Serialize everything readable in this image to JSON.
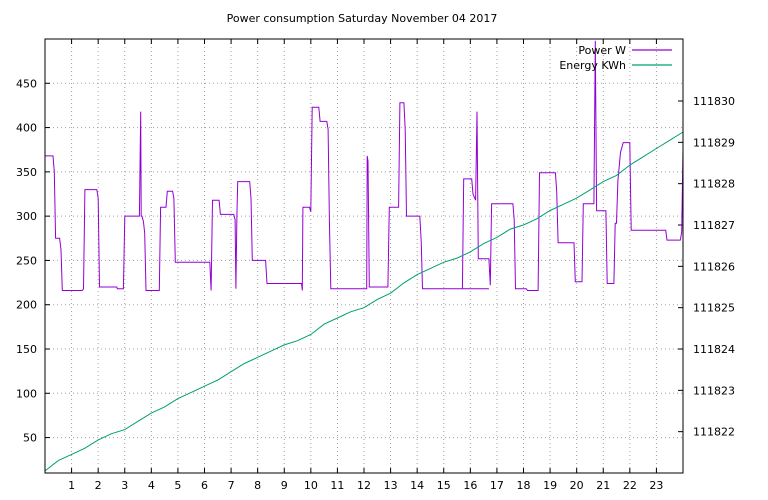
{
  "chart_data": {
    "type": "line",
    "title": "Power consumption Saturday November 04 2017",
    "xlim": [
      0,
      24
    ],
    "ylim": [
      10,
      500
    ],
    "y2lim": [
      111821,
      111831.5
    ],
    "xticks": [
      1,
      2,
      3,
      4,
      5,
      6,
      7,
      8,
      9,
      10,
      11,
      12,
      13,
      14,
      15,
      16,
      17,
      18,
      19,
      20,
      21,
      22,
      23
    ],
    "yticks": [
      50,
      100,
      150,
      200,
      250,
      300,
      350,
      400,
      450
    ],
    "y2ticks": [
      111822,
      111823,
      111824,
      111825,
      111826,
      111827,
      111828,
      111829,
      111830
    ],
    "grid": true,
    "legend_position": "top-right",
    "series": [
      {
        "name": "Power W",
        "axis": "y1",
        "color": "#9400d3",
        "points": [
          [
            0.0,
            368
          ],
          [
            0.3,
            368
          ],
          [
            0.35,
            350
          ],
          [
            0.4,
            275
          ],
          [
            0.55,
            275
          ],
          [
            0.6,
            262
          ],
          [
            0.65,
            216
          ],
          [
            1.4,
            216
          ],
          [
            1.45,
            218
          ],
          [
            1.5,
            330
          ],
          [
            1.95,
            330
          ],
          [
            2.0,
            320
          ],
          [
            2.05,
            220
          ],
          [
            2.7,
            220
          ],
          [
            2.72,
            218
          ],
          [
            2.95,
            218
          ],
          [
            3.0,
            300
          ],
          [
            3.55,
            300
          ],
          [
            3.6,
            418
          ],
          [
            3.62,
            300
          ],
          [
            3.65,
            300
          ],
          [
            3.7,
            294
          ],
          [
            3.75,
            281
          ],
          [
            3.8,
            216
          ],
          [
            4.3,
            216
          ],
          [
            4.35,
            310
          ],
          [
            4.55,
            310
          ],
          [
            4.6,
            328
          ],
          [
            4.8,
            328
          ],
          [
            4.85,
            320
          ],
          [
            4.9,
            248
          ],
          [
            6.2,
            248
          ],
          [
            6.25,
            216
          ],
          [
            6.3,
            318
          ],
          [
            6.55,
            318
          ],
          [
            6.6,
            302
          ],
          [
            7.1,
            302
          ],
          [
            7.15,
            296
          ],
          [
            7.18,
            218
          ],
          [
            7.22,
            300
          ],
          [
            7.25,
            339
          ],
          [
            7.7,
            339
          ],
          [
            7.75,
            320
          ],
          [
            7.8,
            250
          ],
          [
            8.3,
            250
          ],
          [
            8.35,
            224
          ],
          [
            9.65,
            224
          ],
          [
            9.68,
            216
          ],
          [
            9.7,
            310
          ],
          [
            9.95,
            310
          ],
          [
            10.0,
            305
          ],
          [
            10.05,
            423
          ],
          [
            10.3,
            423
          ],
          [
            10.35,
            407
          ],
          [
            10.6,
            407
          ],
          [
            10.65,
            398
          ],
          [
            10.7,
            295
          ],
          [
            10.75,
            218
          ],
          [
            12.1,
            218
          ],
          [
            12.12,
            368
          ],
          [
            12.15,
            362
          ],
          [
            12.2,
            220
          ],
          [
            12.9,
            220
          ],
          [
            12.95,
            310
          ],
          [
            13.3,
            310
          ],
          [
            13.35,
            428
          ],
          [
            13.5,
            428
          ],
          [
            13.55,
            398
          ],
          [
            13.6,
            300
          ],
          [
            14.1,
            300
          ],
          [
            14.15,
            272
          ],
          [
            14.2,
            218
          ],
          [
            16.7,
            218
          ],
          [
            15.7,
            218
          ],
          [
            15.75,
            342
          ],
          [
            16.05,
            342
          ],
          [
            16.1,
            325
          ],
          [
            16.2,
            318
          ],
          [
            16.25,
            418
          ],
          [
            16.3,
            252
          ],
          [
            16.7,
            252
          ],
          [
            16.75,
            222
          ],
          [
            16.8,
            314
          ],
          [
            17.6,
            314
          ],
          [
            17.65,
            296
          ],
          [
            17.7,
            218
          ],
          [
            18.1,
            218
          ],
          [
            18.15,
            216
          ],
          [
            18.55,
            216
          ],
          [
            18.6,
            349
          ],
          [
            19.2,
            349
          ],
          [
            19.25,
            328
          ],
          [
            19.3,
            270
          ],
          [
            19.9,
            270
          ],
          [
            19.95,
            226
          ],
          [
            20.2,
            226
          ],
          [
            20.25,
            314
          ],
          [
            20.65,
            314
          ],
          [
            20.7,
            498
          ],
          [
            20.75,
            306
          ],
          [
            21.1,
            306
          ],
          [
            21.15,
            224
          ],
          [
            21.4,
            224
          ],
          [
            21.45,
            292
          ],
          [
            21.5,
            292
          ],
          [
            21.55,
            340
          ],
          [
            21.65,
            372
          ],
          [
            21.75,
            383
          ],
          [
            22.0,
            383
          ],
          [
            22.05,
            284
          ],
          [
            23.35,
            284
          ],
          [
            23.4,
            273
          ],
          [
            23.9,
            273
          ],
          [
            23.95,
            282
          ],
          [
            24.0,
            376
          ]
        ]
      },
      {
        "name": "Energy KWh",
        "axis": "y2",
        "color": "#009e73",
        "points": [
          [
            0.0,
            111821.05
          ],
          [
            0.5,
            111821.3
          ],
          [
            1.0,
            111821.45
          ],
          [
            1.5,
            111821.6
          ],
          [
            2.0,
            111821.8
          ],
          [
            2.5,
            111821.95
          ],
          [
            3.0,
            111822.05
          ],
          [
            3.5,
            111822.25
          ],
          [
            4.0,
            111822.45
          ],
          [
            4.5,
            111822.6
          ],
          [
            5.0,
            111822.8
          ],
          [
            5.5,
            111822.95
          ],
          [
            6.0,
            111823.1
          ],
          [
            6.5,
            111823.25
          ],
          [
            7.0,
            111823.45
          ],
          [
            7.5,
            111823.65
          ],
          [
            8.0,
            111823.8
          ],
          [
            8.5,
            111823.95
          ],
          [
            9.0,
            111824.1
          ],
          [
            9.5,
            111824.2
          ],
          [
            10.0,
            111824.35
          ],
          [
            10.5,
            111824.6
          ],
          [
            11.0,
            111824.75
          ],
          [
            11.5,
            111824.9
          ],
          [
            12.0,
            111825.0
          ],
          [
            12.5,
            111825.2
          ],
          [
            13.0,
            111825.35
          ],
          [
            13.5,
            111825.6
          ],
          [
            14.0,
            111825.8
          ],
          [
            14.5,
            111825.95
          ],
          [
            15.0,
            111826.1
          ],
          [
            15.5,
            111826.2
          ],
          [
            16.0,
            111826.35
          ],
          [
            16.5,
            111826.55
          ],
          [
            17.0,
            111826.7
          ],
          [
            17.5,
            111826.9
          ],
          [
            18.0,
            111827.0
          ],
          [
            18.5,
            111827.15
          ],
          [
            19.0,
            111827.35
          ],
          [
            19.5,
            111827.5
          ],
          [
            20.0,
            111827.65
          ],
          [
            20.5,
            111827.85
          ],
          [
            21.0,
            111828.05
          ],
          [
            21.5,
            111828.2
          ],
          [
            22.0,
            111828.45
          ],
          [
            22.5,
            111828.65
          ],
          [
            23.0,
            111828.85
          ],
          [
            23.5,
            111829.05
          ],
          [
            24.0,
            111829.25
          ]
        ]
      }
    ]
  }
}
